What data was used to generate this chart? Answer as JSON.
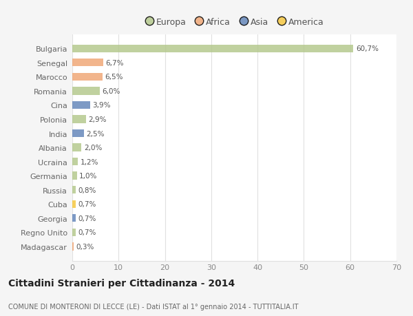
{
  "countries": [
    "Bulgaria",
    "Senegal",
    "Marocco",
    "Romania",
    "Cina",
    "Polonia",
    "India",
    "Albania",
    "Ucraina",
    "Germania",
    "Russia",
    "Cuba",
    "Georgia",
    "Regno Unito",
    "Madagascar"
  ],
  "values": [
    60.7,
    6.7,
    6.5,
    6.0,
    3.9,
    2.9,
    2.5,
    2.0,
    1.2,
    1.0,
    0.8,
    0.7,
    0.7,
    0.7,
    0.3
  ],
  "labels": [
    "60,7%",
    "6,7%",
    "6,5%",
    "6,0%",
    "3,9%",
    "2,9%",
    "2,5%",
    "2,0%",
    "1,2%",
    "1,0%",
    "0,8%",
    "0,7%",
    "0,7%",
    "0,7%",
    "0,3%"
  ],
  "colors": [
    "#b5c98e",
    "#f0a878",
    "#f0a878",
    "#b5c98e",
    "#6688bb",
    "#b5c98e",
    "#6688bb",
    "#b5c98e",
    "#b5c98e",
    "#b5c98e",
    "#b5c98e",
    "#f5c842",
    "#6688bb",
    "#b5c98e",
    "#f0a878"
  ],
  "legend_labels": [
    "Europa",
    "Africa",
    "Asia",
    "America"
  ],
  "legend_colors": [
    "#b5c98e",
    "#f0a878",
    "#6688bb",
    "#f5c842"
  ],
  "title": "Cittadini Stranieri per Cittadinanza - 2014",
  "subtitle": "COMUNE DI MONTERONI DI LECCE (LE) - Dati ISTAT al 1° gennaio 2014 - TUTTITALIA.IT",
  "xlim": [
    0,
    70
  ],
  "xticks": [
    0,
    10,
    20,
    30,
    40,
    50,
    60,
    70
  ],
  "background_color": "#f5f5f5",
  "plot_background": "#ffffff",
  "grid_color": "#e0e0e0",
  "bar_alpha": 0.85,
  "bar_height": 0.55
}
